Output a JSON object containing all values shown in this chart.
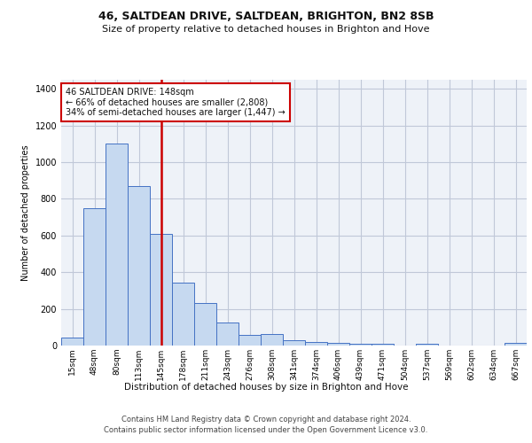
{
  "title1": "46, SALTDEAN DRIVE, SALTDEAN, BRIGHTON, BN2 8SB",
  "title2": "Size of property relative to detached houses in Brighton and Hove",
  "xlabel": "Distribution of detached houses by size in Brighton and Hove",
  "ylabel": "Number of detached properties",
  "footnote1": "Contains HM Land Registry data © Crown copyright and database right 2024.",
  "footnote2": "Contains public sector information licensed under the Open Government Licence v3.0.",
  "categories": [
    "15sqm",
    "48sqm",
    "80sqm",
    "113sqm",
    "145sqm",
    "178sqm",
    "211sqm",
    "243sqm",
    "276sqm",
    "308sqm",
    "341sqm",
    "374sqm",
    "406sqm",
    "439sqm",
    "471sqm",
    "504sqm",
    "537sqm",
    "569sqm",
    "602sqm",
    "634sqm",
    "667sqm"
  ],
  "values": [
    45,
    750,
    1100,
    870,
    610,
    345,
    230,
    125,
    60,
    65,
    28,
    20,
    15,
    12,
    10,
    0,
    12,
    0,
    0,
    0,
    15
  ],
  "bar_color": "#c6d9f0",
  "bar_edge_color": "#4472c4",
  "highlight_index": 4,
  "highlight_color": "#cc0000",
  "annotation_line1": "46 SALTDEAN DRIVE: 148sqm",
  "annotation_line2": "← 66% of detached houses are smaller (2,808)",
  "annotation_line3": "34% of semi-detached houses are larger (1,447) →",
  "annotation_box_color": "#cc0000",
  "ylim": [
    0,
    1450
  ],
  "yticks": [
    0,
    200,
    400,
    600,
    800,
    1000,
    1200,
    1400
  ],
  "grid_color": "#c0c8d8",
  "bg_color": "#eef2f8"
}
